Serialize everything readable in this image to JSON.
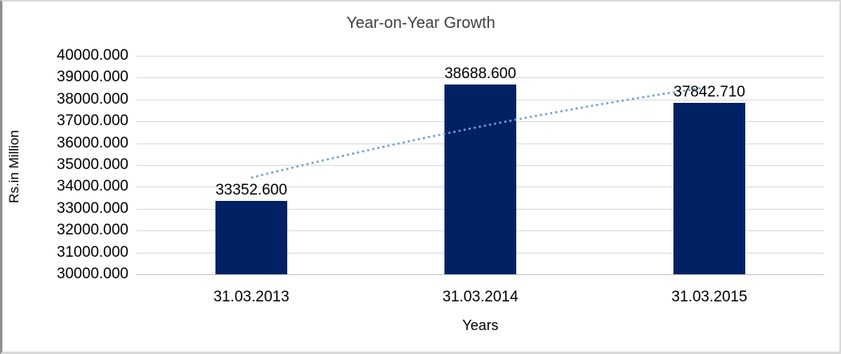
{
  "chart_data": {
    "type": "bar",
    "title": "Year-on-Year Growth",
    "xlabel": "Years",
    "ylabel": "Rs.in Million",
    "categories": [
      "31.03.2013",
      "31.03.2014",
      "31.03.2015"
    ],
    "values": [
      33352.6,
      38688.6,
      37842.71
    ],
    "data_labels": [
      "33352.600",
      "38688.600",
      "37842.710"
    ],
    "ylim": [
      30000,
      40000
    ],
    "ytick_step": 1000,
    "ytick_labels": [
      "40000.000",
      "39000.000",
      "38000.000",
      "37000.000",
      "36000.000",
      "35000.000",
      "34000.000",
      "33000.000",
      "32000.000",
      "31000.000",
      "30000.000"
    ],
    "grid": true,
    "legend": "none",
    "bar_color": "#002264",
    "gridline_color": "#d9d9d9",
    "axis_line_color": "#bfbfbf",
    "title_color": "#3f3f3f",
    "trendline": {
      "style": "dotted",
      "color": "#6ea0d7",
      "points": [
        34420,
        36760,
        38580
      ]
    }
  }
}
